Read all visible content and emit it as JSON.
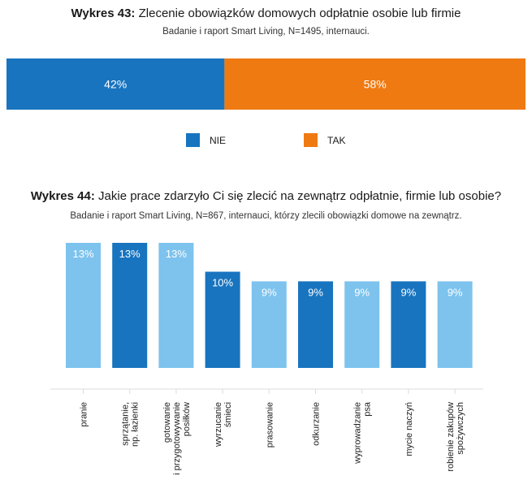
{
  "chart_data": [
    {
      "type": "bar",
      "orientation": "horizontal-stacked",
      "title_prefix": "Wykres 43:",
      "title": "Zlecenie obowiązków domowych odpłatnie osobie lub firmie",
      "subtitle": "Badanie i raport Smart Living, N=1495, internauci.",
      "series": [
        {
          "name": "NIE",
          "value": 42,
          "label": "42%",
          "color": "#1874bf"
        },
        {
          "name": "TAK",
          "value": 58,
          "label": "58%",
          "color": "#ef7a12"
        }
      ],
      "legend": [
        "NIE",
        "TAK"
      ],
      "legend_position": "bottom-center"
    },
    {
      "type": "bar",
      "title_prefix": "Wykres 44:",
      "title": "Jakie prace zdarzyło Ci się zlecić na zewnątrz odpłatnie, firmie lub osobie?",
      "subtitle": "Badanie i raport Smart Living, N=867, internauci, którzy zlecili obowiązki domowe na zewnątrz.",
      "categories": [
        [
          "pranie"
        ],
        [
          "sprzątanie,",
          "np. łazienki"
        ],
        [
          "gotowanie",
          "i przygotowywanie",
          "posiłków"
        ],
        [
          "wyrzucanie",
          "śmieci"
        ],
        [
          "prasowanie"
        ],
        [
          "odkurzanie"
        ],
        [
          "wyprowadzanie",
          "psa"
        ],
        [
          "mycie naczyń"
        ],
        [
          "robienie zakupów",
          "spożywczych"
        ]
      ],
      "values": [
        13,
        13,
        13,
        10,
        9,
        9,
        9,
        9,
        9
      ],
      "labels": [
        "13%",
        "13%",
        "13%",
        "10%",
        "9%",
        "9%",
        "9%",
        "9%",
        "9%"
      ],
      "colors": [
        "#7dc3ee",
        "#1874bf",
        "#7dc3ee",
        "#1874bf",
        "#7dc3ee",
        "#1874bf",
        "#7dc3ee",
        "#1874bf",
        "#7dc3ee"
      ],
      "ylim": [
        0,
        13
      ],
      "unit": "%"
    }
  ]
}
